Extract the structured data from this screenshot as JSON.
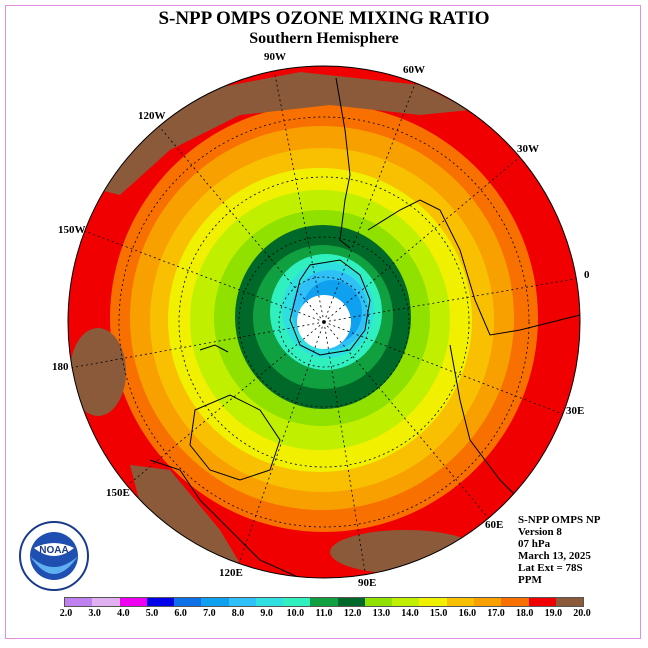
{
  "header": {
    "title": "S-NPP OMPS OZONE MIXING RATIO",
    "subtitle": "Southern Hemisphere"
  },
  "longitude_labels": [
    "90W",
    "60W",
    "30W",
    "0",
    "30E",
    "60E",
    "90E",
    "120E",
    "150E",
    "180",
    "150W",
    "120W"
  ],
  "info": {
    "line1": "S-NPP OMPS NP",
    "line2": "Version 8",
    "line3": "07 hPa",
    "line4": "March 13, 2025",
    "line5": "Lat Ext = 78S",
    "line6": "PPM"
  },
  "logo": {
    "icon": "noaa-logo",
    "text": "NOAA"
  },
  "colorbar": {
    "colors": [
      "#c080f0",
      "#e0b0f0",
      "#f000f0",
      "#0000e8",
      "#1070e8",
      "#10a0f0",
      "#30c0f8",
      "#30e0e0",
      "#30f0c0",
      "#10a040",
      "#006828",
      "#90e000",
      "#c0f000",
      "#f0f000",
      "#f8c000",
      "#f8a000",
      "#f87000",
      "#f00000",
      "#8a5a3a"
    ],
    "ticks": [
      "2.0",
      "3.0",
      "4.0",
      "5.0",
      "6.0",
      "7.0",
      "8.0",
      "9.0",
      "10.0",
      "11.0",
      "12.0",
      "13.0",
      "14.0",
      "15.0",
      "16.0",
      "17.0",
      "18.0",
      "19.0",
      "20.0"
    ]
  }
}
